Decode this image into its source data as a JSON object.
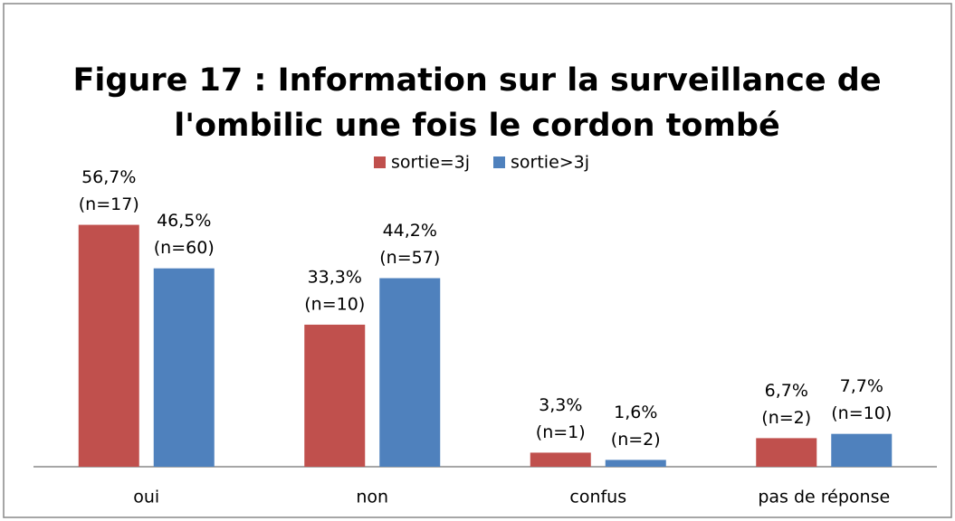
{
  "chart_data": {
    "type": "bar",
    "title": [
      "Figure 17 : Information sur la surveillance de",
      "l'ombilic une fois le cordon tombé"
    ],
    "categories": [
      "oui",
      "non",
      "confus",
      "pas de réponse"
    ],
    "series": [
      {
        "name": "sortie=3j",
        "color": "#c0504d",
        "values": [
          56.7,
          33.3,
          3.3,
          6.7
        ],
        "value_labels": [
          "56,7%",
          "33,3%",
          "3,3%",
          "6,7%"
        ],
        "n_labels": [
          "(n=17)",
          "(n=10)",
          "(n=1)",
          "(n=2)"
        ]
      },
      {
        "name": "sortie>3j",
        "color": "#4f81bd",
        "values": [
          46.5,
          44.2,
          1.6,
          7.7
        ],
        "value_labels": [
          "46,5%",
          "44,2%",
          "1,6%",
          "7,7%"
        ],
        "n_labels": [
          "(n=60)",
          "(n=57)",
          "(n=2)",
          "(n=10)"
        ]
      }
    ],
    "ylim": [
      0,
      60
    ],
    "legend": "top"
  }
}
